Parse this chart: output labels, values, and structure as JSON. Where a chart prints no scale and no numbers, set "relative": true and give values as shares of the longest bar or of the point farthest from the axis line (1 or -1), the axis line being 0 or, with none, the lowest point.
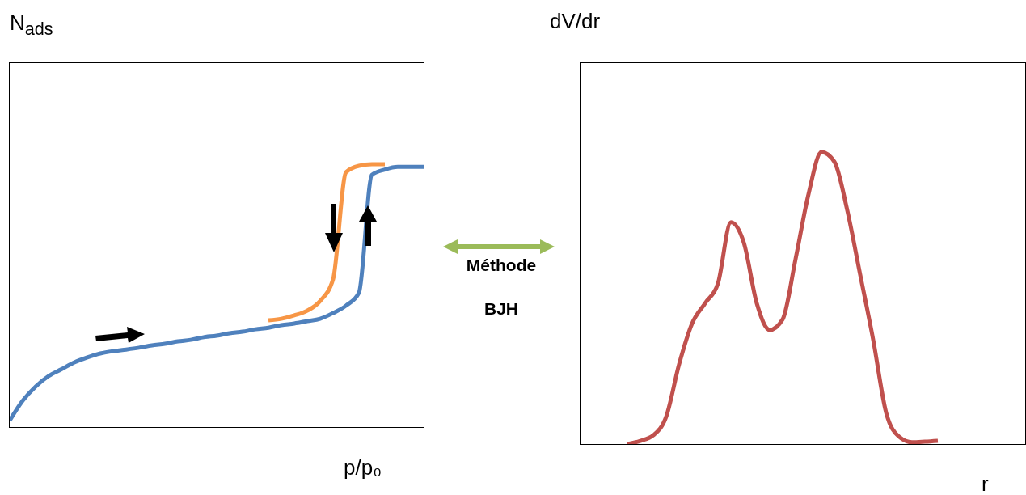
{
  "chart_data": [
    {
      "type": "line",
      "relative": true,
      "xlabel": "p/p₀",
      "ylabel": "N$_{ads}$",
      "categories": [
        null,
        null,
        null,
        null,
        null,
        null,
        null,
        null,
        null,
        null,
        null,
        null,
        null,
        null,
        null,
        null,
        null,
        null,
        null,
        null,
        null,
        null,
        null,
        null,
        null,
        null,
        null,
        null,
        null,
        null,
        null,
        null,
        null
      ],
      "series": [
        {
          "color": "#4f81bd",
          "values": [
            0.025,
            0.1,
            0.154,
            0.194,
            0.22,
            0.246,
            0.265,
            0.28,
            0.289,
            0.295,
            0.302,
            0.311,
            0.317,
            0.326,
            0.332,
            0.342,
            0.348,
            0.357,
            0.363,
            0.372,
            0.378,
            0.388,
            0.394,
            0.403,
            0.412,
            0.434,
            0.462,
            0.511,
            0.96,
            0.98,
            0.99,
            0.99,
            0.99
          ]
        },
        {
          "color": "#f79646",
          "values": [
            null,
            null,
            null,
            null,
            null,
            null,
            null,
            null,
            null,
            null,
            null,
            null,
            null,
            null,
            null,
            null,
            null,
            null,
            null,
            null,
            0.406,
            0.412,
            0.425,
            0.443,
            0.48,
            0.563,
            0.97,
            0.994,
            1,
            1,
            null,
            null,
            null
          ]
        }
      ]
    },
    {
      "type": "other",
      "annotations": [
        "Méthode",
        "BJH"
      ]
    },
    {
      "type": "line",
      "relative": true,
      "xlabel": "r",
      "ylabel": "dV/dr",
      "categories": [
        null,
        null,
        null,
        null,
        null,
        null,
        null,
        null,
        null,
        null,
        null,
        null,
        null,
        null,
        null,
        null,
        null,
        null,
        null,
        null,
        null,
        null,
        null,
        null,
        null
      ],
      "series": [
        {
          "color": "#c0504d",
          "values": [
            0,
            0.011,
            0.03,
            0.094,
            0.274,
            0.413,
            0.482,
            0.55,
            0.76,
            0.69,
            0.482,
            0.391,
            0.427,
            0.634,
            0.856,
            1,
            0.967,
            0.8,
            0.579,
            0.357,
            0.108,
            0.025,
            0.006,
            0.008,
            0.011
          ]
        }
      ]
    }
  ]
}
